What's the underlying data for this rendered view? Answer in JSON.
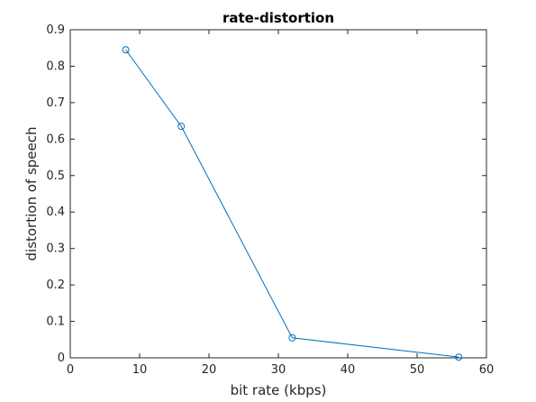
{
  "chart_data": {
    "type": "line",
    "title": "rate-distortion",
    "xlabel": "bit rate (kbps)",
    "ylabel": "distortion of speech",
    "xlim": [
      0,
      60
    ],
    "ylim": [
      0,
      0.9
    ],
    "xticks": [
      "0",
      "10",
      "20",
      "30",
      "40",
      "50",
      "60"
    ],
    "yticks": [
      "0",
      "0.1",
      "0.2",
      "0.3",
      "0.4",
      "0.5",
      "0.6",
      "0.7",
      "0.8",
      "0.9"
    ],
    "grid": false,
    "marker": "circle",
    "series": [
      {
        "x": [
          8,
          16,
          32,
          56
        ],
        "y": [
          0.845,
          0.635,
          0.055,
          0.002
        ],
        "color": "#0072BD"
      }
    ]
  }
}
